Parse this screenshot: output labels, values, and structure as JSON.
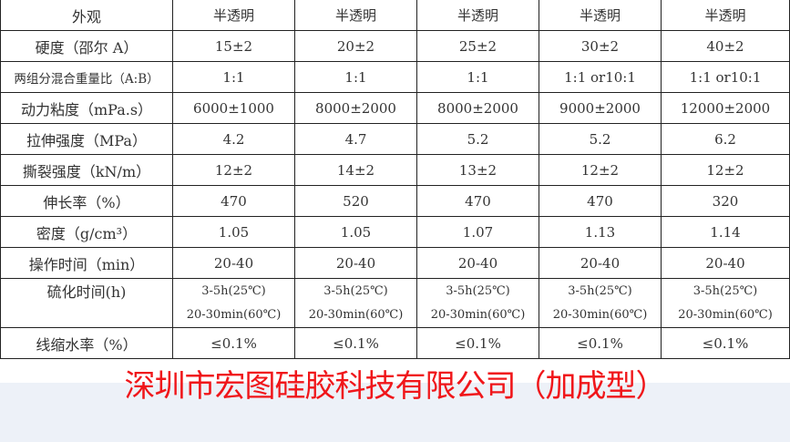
{
  "table": {
    "rows": [
      {
        "label": "外观",
        "values": [
          "半透明",
          "半透明",
          "半透明",
          "半透明",
          "半透明"
        ]
      },
      {
        "label": "硬度（邵尔 A）",
        "values": [
          "15±2",
          "20±2",
          "25±2",
          "30±2",
          "40±2"
        ]
      },
      {
        "label": "两组分混合重量比（A:B）",
        "values": [
          "1:1",
          "1:1",
          "1:1",
          "1:1 or10:1",
          "1:1 or10:1"
        ]
      },
      {
        "label": "动力粘度（mPa.s）",
        "values": [
          "6000±1000",
          "8000±2000",
          "8000±2000",
          "9000±2000",
          "12000±2000"
        ]
      },
      {
        "label": "拉伸强度（MPa）",
        "values": [
          "4.2",
          "4.7",
          "5.2",
          "5.2",
          "6.2"
        ]
      },
      {
        "label": "撕裂强度（kN/m）",
        "values": [
          "12±2",
          "14±2",
          "13±2",
          "12±2",
          "12±2"
        ]
      },
      {
        "label": "伸长率（%）",
        "values": [
          "470",
          "520",
          "470",
          "470",
          "320"
        ]
      },
      {
        "label": "密度（g/cm³）",
        "values": [
          "1.05",
          "1.05",
          "1.07",
          "1.13",
          "1.14"
        ]
      },
      {
        "label": "操作时间（min）",
        "values": [
          "20-40",
          "20-40",
          "20-40",
          "20-40",
          "20-40"
        ]
      },
      {
        "label": "硫化时间(h)",
        "values": [
          "3-5h(25℃)",
          "3-5h(25℃)",
          "3-5h(25℃)",
          "3-5h(25℃)",
          "3-5h(25℃)"
        ],
        "values2": [
          "20-30min(60℃)",
          "20-30min(60℃)",
          "20-30min(60℃)",
          "20-30min(60℃)",
          "20-30min(60℃)"
        ]
      },
      {
        "label": "线缩水率（%）",
        "values": [
          "≤0.1%",
          "≤0.1%",
          "≤0.1%",
          "≤0.1%",
          "≤0.1%"
        ]
      }
    ]
  },
  "footer": {
    "company": "深圳市宏图硅胶科技有限公司（加成型）",
    "color": "#f0161a",
    "band_color": "#edf1f8"
  }
}
